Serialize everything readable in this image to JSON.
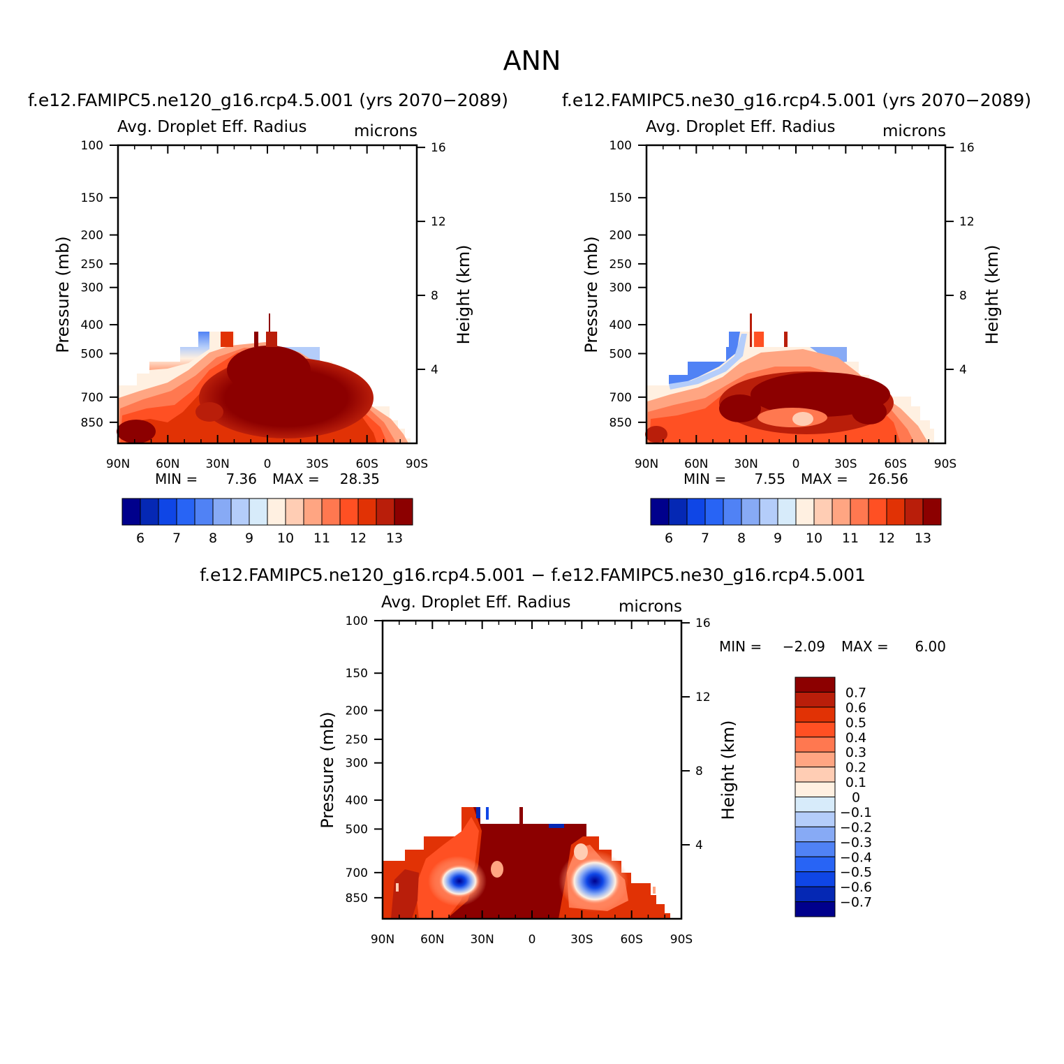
{
  "figure_title": "ANN",
  "panels": [
    {
      "case_label": "f.e12.FAMIPC5.ne120_g16.rcp4.5.001 (yrs 2070−2089)",
      "variable": "Avg. Droplet Eff. Radius",
      "units": "microns",
      "ylabel": "Pressure (mb)",
      "y2label": "Height (km)",
      "min_label": "MIN =",
      "min_value": "7.36",
      "max_label": "MAX =",
      "max_value": "28.35"
    },
    {
      "case_label": "f.e12.FAMIPC5.ne30_g16.rcp4.5.001 (yrs 2070−2089)",
      "variable": "Avg. Droplet Eff. Radius",
      "units": "microns",
      "ylabel": "Pressure (mb)",
      "y2label": "Height (km)",
      "min_label": "MIN =",
      "min_value": "7.55",
      "max_label": "MAX =",
      "max_value": "26.56"
    },
    {
      "case_label": "f.e12.FAMIPC5.ne120_g16.rcp4.5.001 − f.e12.FAMIPC5.ne30_g16.rcp4.5.001",
      "variable": "Avg. Droplet Eff. Radius",
      "units": "microns",
      "ylabel": "Pressure (mb)",
      "y2label": "Height (km)",
      "min_label": "MIN =",
      "min_value": "−2.09",
      "max_label": "MAX =",
      "max_value": "6.00"
    }
  ],
  "chart_data": {
    "type": "heatmap",
    "x_ticks": [
      "90N",
      "60N",
      "30N",
      "0",
      "30S",
      "60S",
      "90S"
    ],
    "x_tick_values": [
      90,
      60,
      30,
      0,
      -30,
      -60,
      -90
    ],
    "y_ticks": [
      "100",
      "150",
      "200",
      "250",
      "300",
      "400",
      "500",
      "700",
      "850"
    ],
    "y_tick_values": [
      100,
      150,
      200,
      250,
      300,
      400,
      500,
      700,
      850
    ],
    "ylim": [
      100,
      1000
    ],
    "y2_ticks": [
      "16",
      "12",
      "8",
      "4"
    ],
    "y2_tick_values": [
      16,
      12,
      8,
      4
    ],
    "colorbar_abs": {
      "labels": [
        "6",
        "7",
        "8",
        "9",
        "10",
        "11",
        "12",
        "13"
      ],
      "colors": [
        "#00008c",
        "#0528b4",
        "#0f46e6",
        "#2864f5",
        "#5082f5",
        "#87aaf5",
        "#b4cdfa",
        "#d7ebfa",
        "#fff0e1",
        "#ffcdb4",
        "#ffa582",
        "#ff7850",
        "#ff5023",
        "#e13205",
        "#b91e0a",
        "#8c0000"
      ]
    },
    "colorbar_diff": {
      "labels": [
        "0.7",
        "0.6",
        "0.5",
        "0.4",
        "0.3",
        "0.2",
        "0.1",
        "0",
        "−0.1",
        "−0.2",
        "−0.3",
        "−0.4",
        "−0.5",
        "−0.6",
        "−0.7"
      ],
      "colors": [
        "#8c0000",
        "#b91e0a",
        "#e13205",
        "#ff5023",
        "#ff7850",
        "#ffa582",
        "#ffcdb4",
        "#fff0e1",
        "#d7ebfa",
        "#b4cdfa",
        "#87aaf5",
        "#5082f5",
        "#2864f5",
        "#0f46e6",
        "#0528b4",
        "#00008c"
      ]
    }
  }
}
